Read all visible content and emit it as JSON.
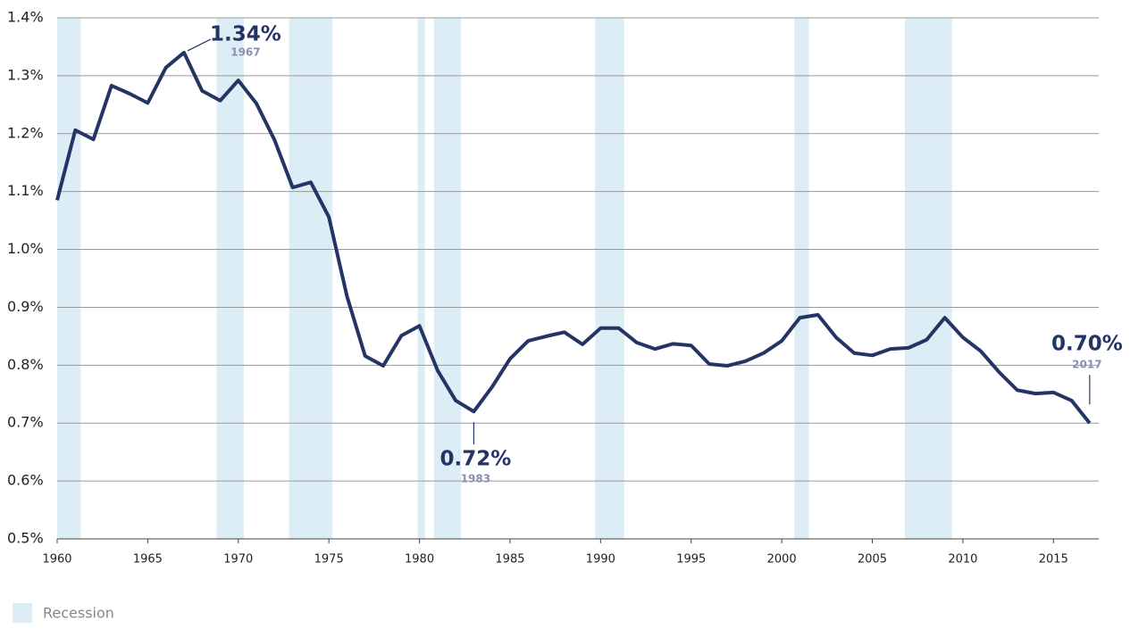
{
  "chart_data": {
    "type": "line",
    "x": [
      1960,
      1961,
      1962,
      1963,
      1964,
      1965,
      1966,
      1967,
      1968,
      1969,
      1970,
      1971,
      1972,
      1973,
      1974,
      1975,
      1976,
      1977,
      1978,
      1979,
      1980,
      1981,
      1982,
      1983,
      1984,
      1985,
      1986,
      1987,
      1988,
      1989,
      1990,
      1991,
      1992,
      1993,
      1994,
      1995,
      1996,
      1997,
      1998,
      1999,
      2000,
      2001,
      2002,
      2003,
      2004,
      2005,
      2006,
      2007,
      2008,
      2009,
      2010,
      2011,
      2012,
      2013,
      2014,
      2015,
      2016,
      2017
    ],
    "series": [
      {
        "color": "#243465",
        "values": [
          1.085,
          1.206,
          1.19,
          1.283,
          1.269,
          1.253,
          1.314,
          1.34,
          1.274,
          1.257,
          1.292,
          1.252,
          1.189,
          1.107,
          1.116,
          1.056,
          0.919,
          0.816,
          0.799,
          0.851,
          0.868,
          0.791,
          0.739,
          0.72,
          0.762,
          0.811,
          0.842,
          0.85,
          0.857,
          0.836,
          0.864,
          0.864,
          0.839,
          0.828,
          0.837,
          0.834,
          0.802,
          0.799,
          0.807,
          0.821,
          0.842,
          0.882,
          0.887,
          0.848,
          0.821,
          0.817,
          0.828,
          0.83,
          0.844,
          0.882,
          0.848,
          0.824,
          0.788,
          0.757,
          0.751,
          0.753,
          0.739,
          0.7
        ]
      }
    ],
    "xlim": [
      1960,
      2017.5
    ],
    "xticks": [
      1960,
      1965,
      1970,
      1975,
      1980,
      1985,
      1990,
      1995,
      2000,
      2005,
      2010,
      2015
    ],
    "ylim": [
      0.5,
      1.4
    ],
    "yticks": [
      {
        "value": 0.5,
        "label": "0.5%"
      },
      {
        "value": 0.6,
        "label": "0.6%"
      },
      {
        "value": 0.7,
        "label": "0.7%"
      },
      {
        "value": 0.8,
        "label": "0.8%"
      },
      {
        "value": 0.9,
        "label": "0.9%"
      },
      {
        "value": 1.0,
        "label": "1.0%"
      },
      {
        "value": 1.1,
        "label": "1.1%"
      },
      {
        "value": 1.2,
        "label": "1.2%"
      },
      {
        "value": 1.3,
        "label": "1.3%"
      },
      {
        "value": 1.4,
        "label": "1.4%"
      }
    ],
    "grid": true,
    "recessions": {
      "name": "Recession",
      "color": "#dcedf5",
      "spans": [
        [
          1960,
          1961.3
        ],
        [
          1968.8,
          1970.3
        ],
        [
          1972.8,
          1975.2
        ],
        [
          1979.9,
          1980.3
        ],
        [
          1980.8,
          1982.3
        ],
        [
          1989.7,
          1991.3
        ],
        [
          2000.7,
          2001.5
        ],
        [
          2006.8,
          2009.4
        ]
      ]
    },
    "annotations": [
      {
        "label": "1.34%",
        "year": "1967",
        "x": 1967,
        "y": 1.34
      },
      {
        "label": "0.72%",
        "year": "1983",
        "x": 1983,
        "y": 0.72
      },
      {
        "label": "0.70%",
        "year": "2017",
        "x": 2017,
        "y": 0.7
      }
    ]
  }
}
